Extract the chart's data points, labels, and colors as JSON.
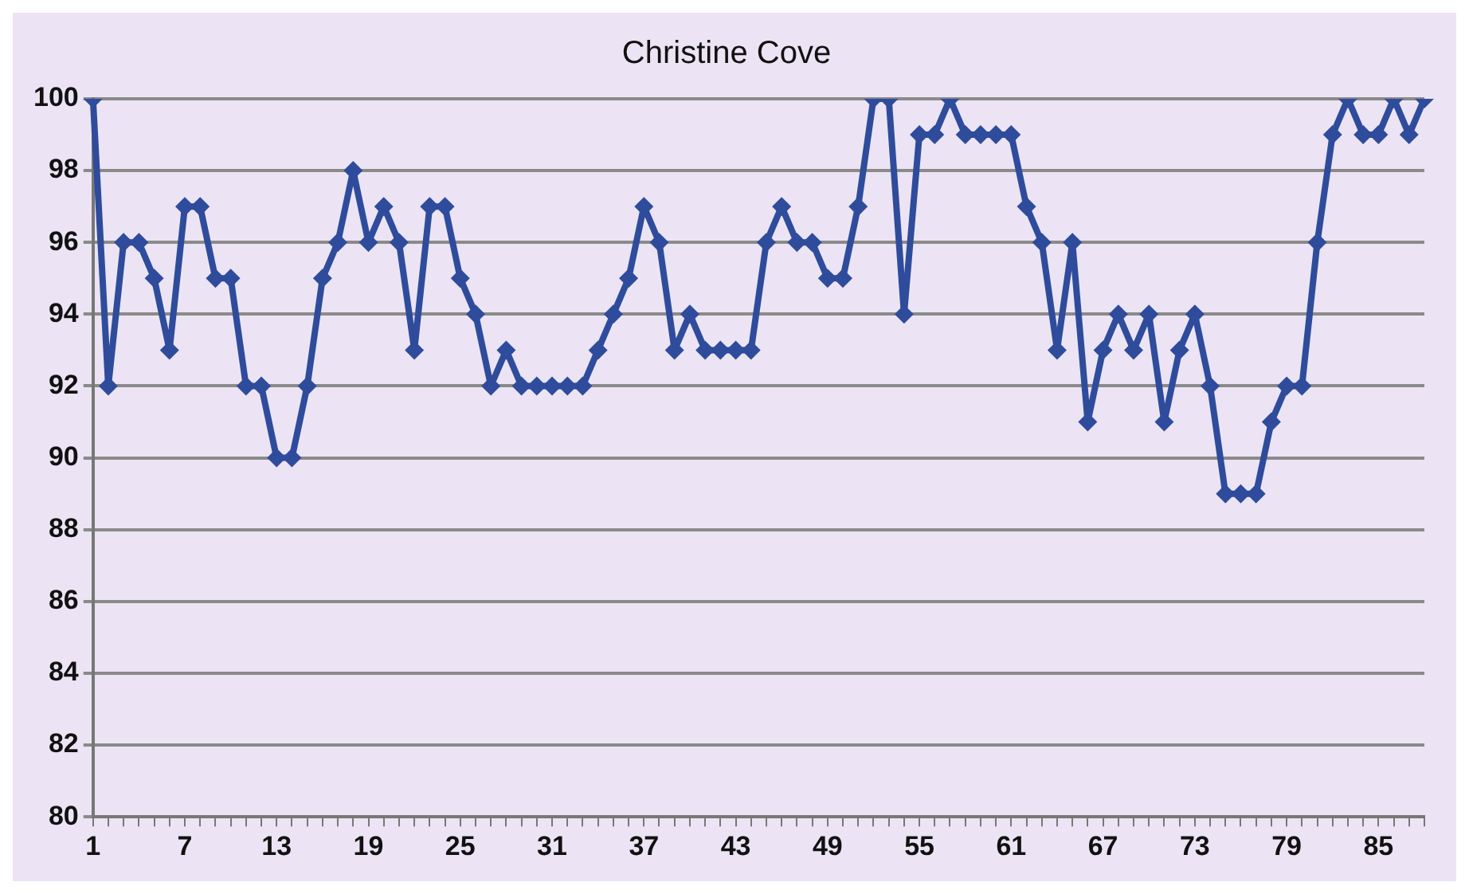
{
  "chart_data": {
    "type": "line",
    "title": "Christine Cove",
    "categories": [
      "1",
      null,
      null,
      null,
      null,
      null,
      "7",
      null,
      null,
      null,
      null,
      null,
      "13",
      null,
      null,
      null,
      null,
      null,
      "19",
      null,
      null,
      null,
      null,
      null,
      "25",
      null,
      null,
      null,
      null,
      null,
      "31",
      null,
      null,
      null,
      null,
      null,
      "37",
      null,
      null,
      null,
      null,
      null,
      "43",
      null,
      null,
      null,
      null,
      null,
      "49",
      null,
      null,
      null,
      null,
      null,
      "55",
      null,
      null,
      null,
      null,
      null,
      "61",
      null,
      null,
      null,
      null,
      null,
      "67",
      null,
      null,
      null,
      null,
      null,
      "73",
      null,
      null,
      null,
      null,
      null,
      "79",
      null,
      null,
      null,
      null,
      null,
      "85",
      null,
      null,
      null
    ],
    "series": [
      {
        "color": "#2f4c9c",
        "values": [
          100,
          92,
          96,
          96,
          95,
          93,
          97,
          97,
          95,
          95,
          92,
          92,
          90,
          90,
          92,
          95,
          96,
          98,
          96,
          97,
          96,
          93,
          97,
          97,
          95,
          94,
          92,
          93,
          92,
          92,
          92,
          92,
          92,
          93,
          94,
          95,
          97,
          96,
          93,
          94,
          93,
          93,
          93,
          93,
          96,
          97,
          96,
          96,
          95,
          95,
          97,
          100,
          100,
          94,
          99,
          99,
          100,
          99,
          99,
          99,
          99,
          97,
          96,
          93,
          96,
          91,
          93,
          94,
          93,
          94,
          91,
          93,
          94,
          92,
          89,
          89,
          89,
          91,
          92,
          92,
          96,
          99,
          100,
          99,
          99,
          100,
          99,
          100
        ]
      }
    ],
    "ylim": [
      80,
      100
    ],
    "yticks": [
      80,
      82,
      84,
      86,
      88,
      90,
      92,
      94,
      96,
      98,
      100
    ],
    "grid": "y",
    "legend": false,
    "marker": "diamond",
    "line_style": "solid"
  }
}
